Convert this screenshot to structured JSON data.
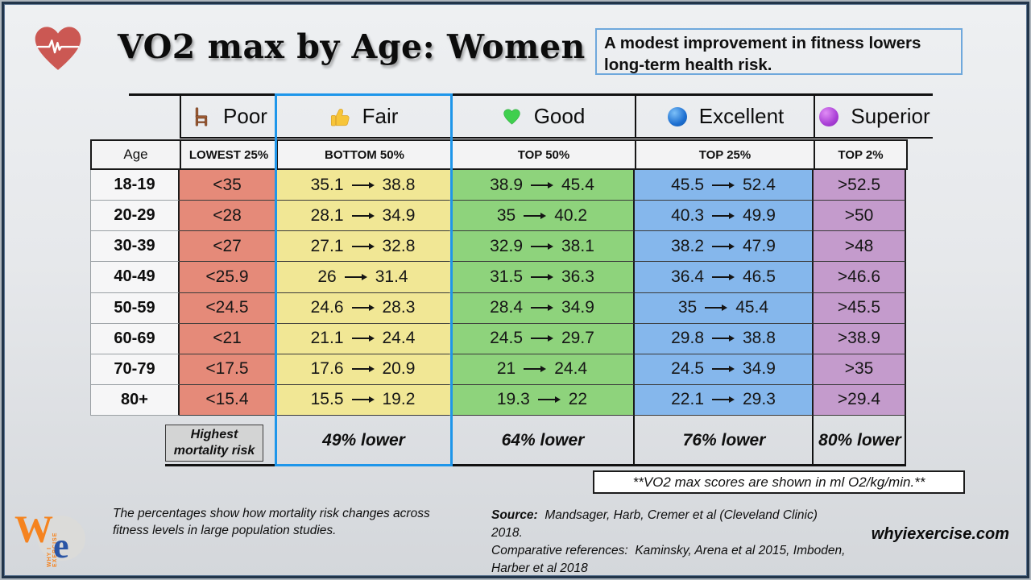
{
  "title": "VO2 max by Age: Women",
  "info_box": {
    "text": "A modest improvement in fitness lowers long-term health risk."
  },
  "chart_data": {
    "type": "table",
    "title": "VO2 max by Age: Women",
    "age_header": "Age",
    "columns": [
      {
        "label": "Poor",
        "icon": "chair-icon",
        "subheader": "LOWEST 25%"
      },
      {
        "label": "Fair",
        "icon": "thumbs-up-icon",
        "subheader": "BOTTOM 50%",
        "highlighted": true
      },
      {
        "label": "Good",
        "icon": "green-heart-icon",
        "subheader": "TOP 50%"
      },
      {
        "label": "Excellent",
        "icon": "blue-circle-icon",
        "subheader": "TOP 25%"
      },
      {
        "label": "Superior",
        "icon": "purple-circle-icon",
        "subheader": "TOP 2%"
      }
    ],
    "rows": [
      {
        "age": "18-19",
        "poor": "<35",
        "fair": [
          "35.1",
          "38.8"
        ],
        "good": [
          "38.9",
          "45.4"
        ],
        "excellent": [
          "45.5",
          "52.4"
        ],
        "superior": ">52.5"
      },
      {
        "age": "20-29",
        "poor": "<28",
        "fair": [
          "28.1",
          "34.9"
        ],
        "good": [
          "35",
          "40.2"
        ],
        "excellent": [
          "40.3",
          "49.9"
        ],
        "superior": ">50"
      },
      {
        "age": "30-39",
        "poor": "<27",
        "fair": [
          "27.1",
          "32.8"
        ],
        "good": [
          "32.9",
          "38.1"
        ],
        "excellent": [
          "38.2",
          "47.9"
        ],
        "superior": ">48"
      },
      {
        "age": "40-49",
        "poor": "<25.9",
        "fair": [
          "26",
          "31.4"
        ],
        "good": [
          "31.5",
          "36.3"
        ],
        "excellent": [
          "36.4",
          "46.5"
        ],
        "superior": ">46.6"
      },
      {
        "age": "50-59",
        "poor": "<24.5",
        "fair": [
          "24.6",
          "28.3"
        ],
        "good": [
          "28.4",
          "34.9"
        ],
        "excellent": [
          "35",
          "45.4"
        ],
        "superior": ">45.5"
      },
      {
        "age": "60-69",
        "poor": "<21",
        "fair": [
          "21.1",
          "24.4"
        ],
        "good": [
          "24.5",
          "29.7"
        ],
        "excellent": [
          "29.8",
          "38.8"
        ],
        "superior": ">38.9"
      },
      {
        "age": "70-79",
        "poor": "<17.5",
        "fair": [
          "17.6",
          "20.9"
        ],
        "good": [
          "21",
          "24.4"
        ],
        "excellent": [
          "24.5",
          "34.9"
        ],
        "superior": ">35"
      },
      {
        "age": "80+",
        "poor": "<15.4",
        "fair": [
          "15.5",
          "19.2"
        ],
        "good": [
          "19.3",
          "22"
        ],
        "excellent": [
          "22.1",
          "29.3"
        ],
        "superior": ">29.4"
      }
    ],
    "mortality_summary": {
      "poor": "Highest mortality risk",
      "fair": "49% lower",
      "good": "64% lower",
      "excellent": "76% lower",
      "superior": "80% lower"
    },
    "units_note": "**VO2 max scores are shown in ml O2/kg/min.**"
  },
  "footnote": "The percentages show how mortality risk changes across fitness levels in large population studies.",
  "source": {
    "label": "Source:",
    "line1": "  Mandsager, Harb, Cremer et al (Cleveland Clinic) 2018.",
    "line2": "Comparative references:  Kaminsky, Arena et al 2015, Imboden,",
    "line3": "Harber et al 2018"
  },
  "website": "whyiexercise.com",
  "logo": {
    "w": "W",
    "e": "e",
    "vertical_text": "WHY I EXERCISE"
  },
  "colors": {
    "poor_cell": "#e58a79",
    "fair_cell": "#f1e795",
    "good_cell": "#8ed37c",
    "excellent_cell": "#85b7ec",
    "superior_cell": "#c49bcc",
    "highlight_border": "#1e96ea",
    "info_border": "#6fa8dc"
  }
}
